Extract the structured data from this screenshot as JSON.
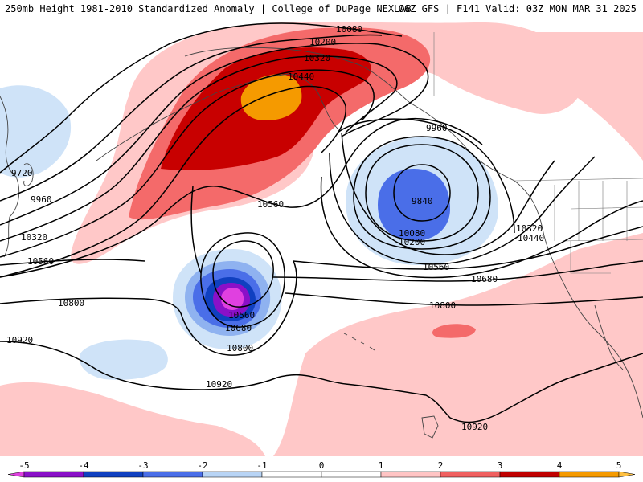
{
  "header": {
    "title": "250mb Height 1981-2010 Standardized Anomaly | College of DuPage NEXLAB",
    "run_info": "06Z GFS | F141 Valid: 03Z MON MAR 31 2025"
  },
  "contour_labels": [
    {
      "id": "c10080-n",
      "text": "10080"
    },
    {
      "id": "c10200-n",
      "text": "10200"
    },
    {
      "id": "c10320-n",
      "text": "10320"
    },
    {
      "id": "c10440-n",
      "text": "10440"
    },
    {
      "id": "c9960-ne",
      "text": "9960"
    },
    {
      "id": "c9840",
      "text": "9840"
    },
    {
      "id": "c10080-ne",
      "text": "10080"
    },
    {
      "id": "c10200-ne",
      "text": "10200"
    },
    {
      "id": "c10320-e",
      "text": "10320"
    },
    {
      "id": "c10440-e",
      "text": "10440"
    },
    {
      "id": "c10560-mid",
      "text": "10560"
    },
    {
      "id": "c10560-ctr",
      "text": "10560"
    },
    {
      "id": "c10680-e",
      "text": "10680"
    },
    {
      "id": "c10800-e",
      "text": "10800"
    },
    {
      "id": "c9720-w",
      "text": "9720"
    },
    {
      "id": "c9960-w",
      "text": "9960"
    },
    {
      "id": "c10320-w",
      "text": "10320"
    },
    {
      "id": "c10560-w",
      "text": "10560"
    },
    {
      "id": "c10800-w",
      "text": "10800"
    },
    {
      "id": "c10920-w",
      "text": "10920"
    },
    {
      "id": "c10560-low",
      "text": "10560"
    },
    {
      "id": "c10680-low",
      "text": "10680"
    },
    {
      "id": "c10800-low",
      "text": "10800"
    },
    {
      "id": "c10920-s",
      "text": "10920"
    },
    {
      "id": "c10920-se",
      "text": "10920"
    }
  ],
  "colorbar": {
    "ticks": [
      "-5",
      "-4",
      "-3",
      "-2",
      "-1",
      "0",
      "1",
      "2",
      "3",
      "4",
      "5"
    ],
    "colors": [
      "#e040e0",
      "#8a10c8",
      "#1040c0",
      "#4a6ee8",
      "#b8d4f5",
      "#ffffff",
      "#ffffff",
      "#ffc4c4",
      "#f06060",
      "#c00000",
      "#f59a00",
      "#ffc040"
    ]
  },
  "colors": {
    "neg1": "#cfe3f8",
    "neg2": "#8fb2f0",
    "neg3": "#4a6ee8",
    "neg4": "#1040c0",
    "neg5": "#8a10c8",
    "neg6": "#e040e0",
    "pos1": "#ffc8c8",
    "pos2": "#f46a6a",
    "pos3": "#c80000",
    "pos4": "#f59a00"
  }
}
